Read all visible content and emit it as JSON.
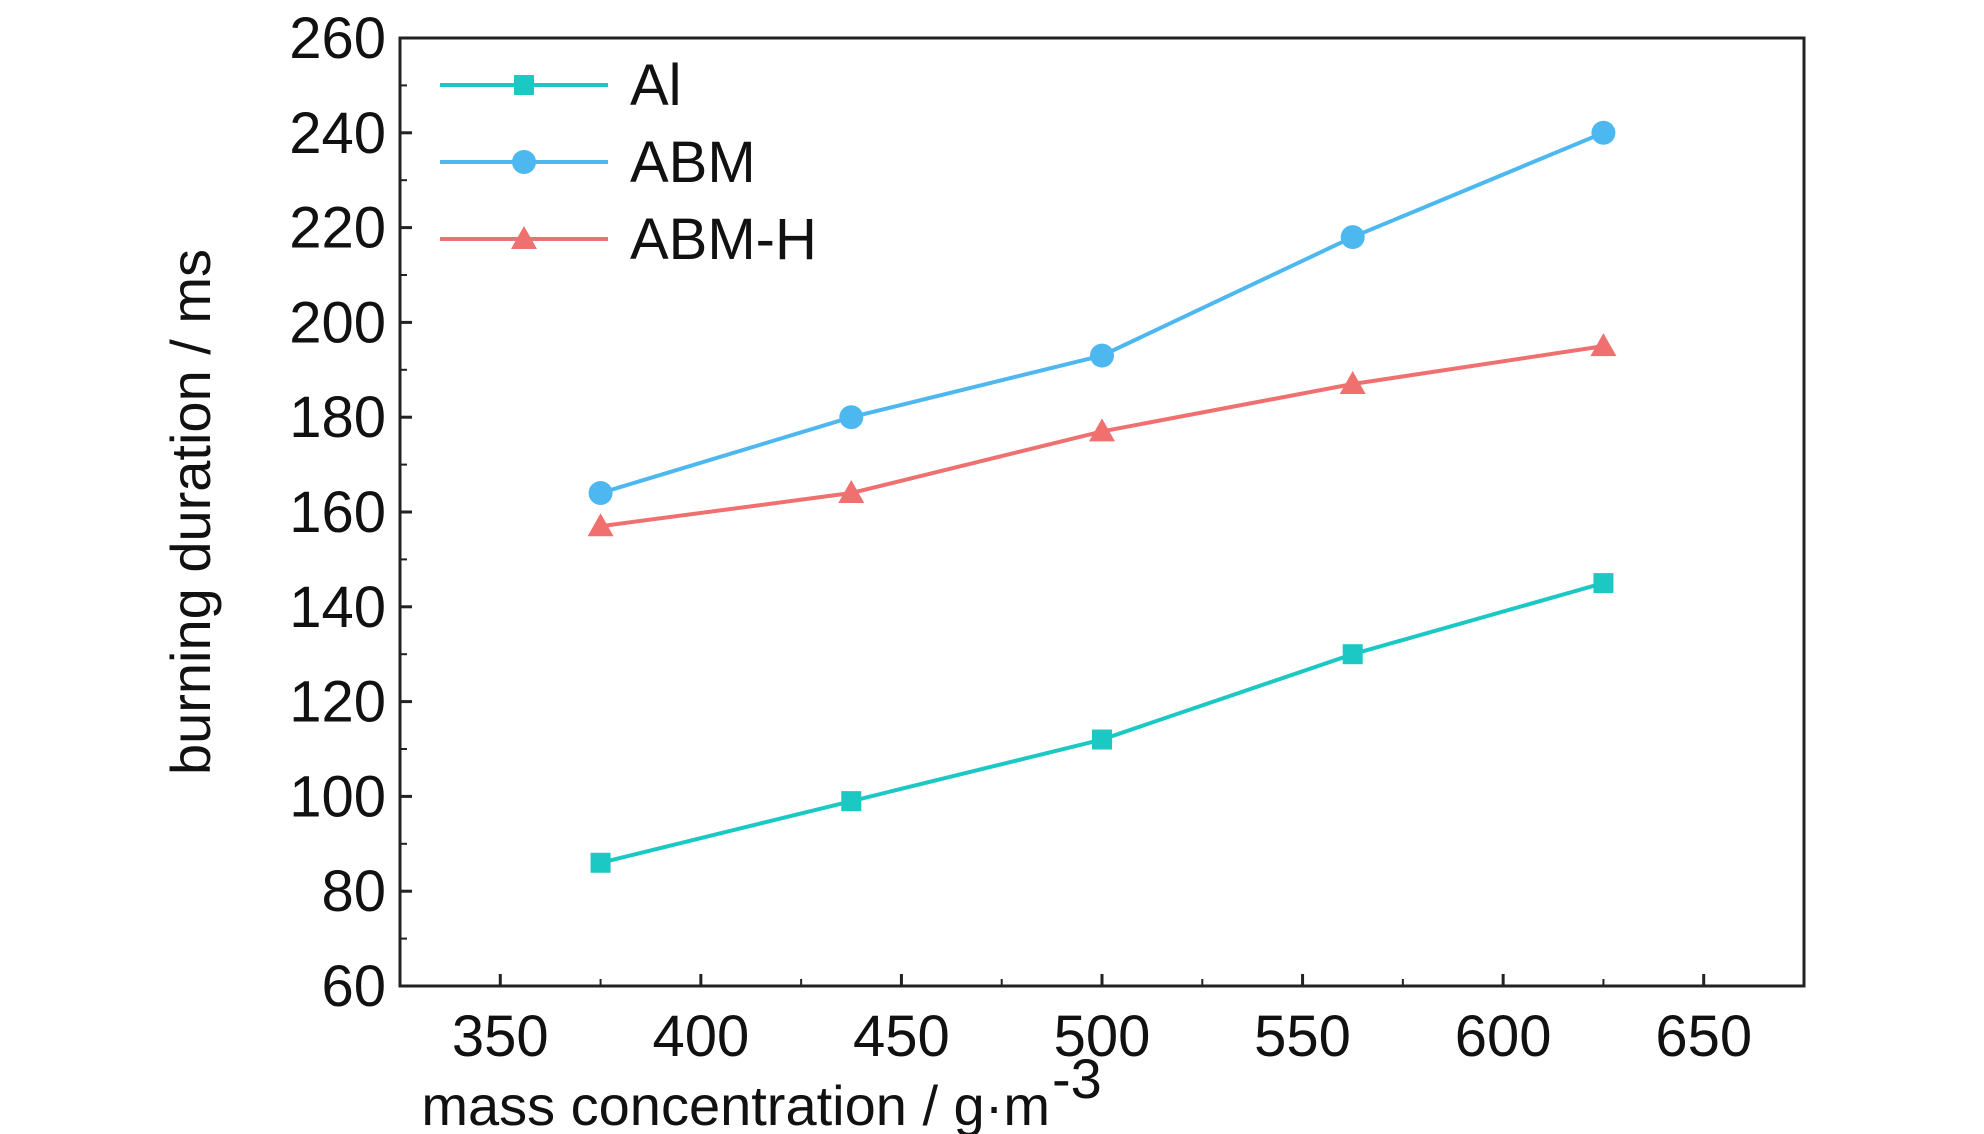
{
  "chart_data": {
    "type": "line",
    "title": "",
    "xlabel": "mass concentration / g·m",
    "xlabel_superscript": "-3",
    "ylabel": "burning duration / ms",
    "xlim": [
      325,
      675
    ],
    "ylim": [
      60,
      260
    ],
    "xticks": [
      350,
      400,
      450,
      500,
      550,
      600,
      650
    ],
    "yticks": [
      60,
      80,
      100,
      120,
      140,
      160,
      180,
      200,
      220,
      240,
      260
    ],
    "grid": false,
    "legend_position": "top-left",
    "x": [
      375,
      437.5,
      500,
      562.5,
      625
    ],
    "series": [
      {
        "name": "Al",
        "values": [
          86,
          99,
          112,
          130,
          145
        ],
        "color": "#1cc8c4",
        "marker": "square"
      },
      {
        "name": "ABM",
        "values": [
          164,
          180,
          193,
          218,
          240
        ],
        "color": "#4db8f0",
        "marker": "circle"
      },
      {
        "name": "ABM-H",
        "values": [
          157,
          164,
          177,
          187,
          195
        ],
        "color": "#f07070",
        "marker": "triangle"
      }
    ]
  }
}
